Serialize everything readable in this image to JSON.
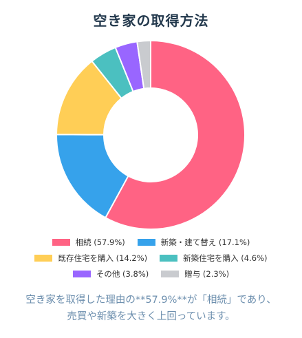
{
  "title": "空き家の取得方法",
  "chart_data": {
    "type": "pie",
    "title": "空き家の取得方法",
    "categories": [
      "相続",
      "新築・建て替え",
      "既存住宅を購入",
      "新築住宅を購入",
      "その他",
      "贈与"
    ],
    "values": [
      57.9,
      17.1,
      14.2,
      4.6,
      3.8,
      2.3
    ],
    "colors": [
      "#ff6384",
      "#36a2eb",
      "#ffce56",
      "#4bc0c0",
      "#9966ff",
      "#c9cbcf"
    ],
    "legend_labels": [
      "相続 (57.9%)",
      "新築・建て替え (17.1%)",
      "既存住宅を購入 (14.2%)",
      "新築住宅を購入 (4.6%)",
      "その他 (3.8%)",
      "贈与 (2.3%)"
    ],
    "legend_position": "bottom",
    "donut": true
  },
  "note": {
    "line1": "空き家を取得した理由の**57.9%**が「相続」であり、",
    "line2": "売買や新築を大きく上回っています。"
  }
}
